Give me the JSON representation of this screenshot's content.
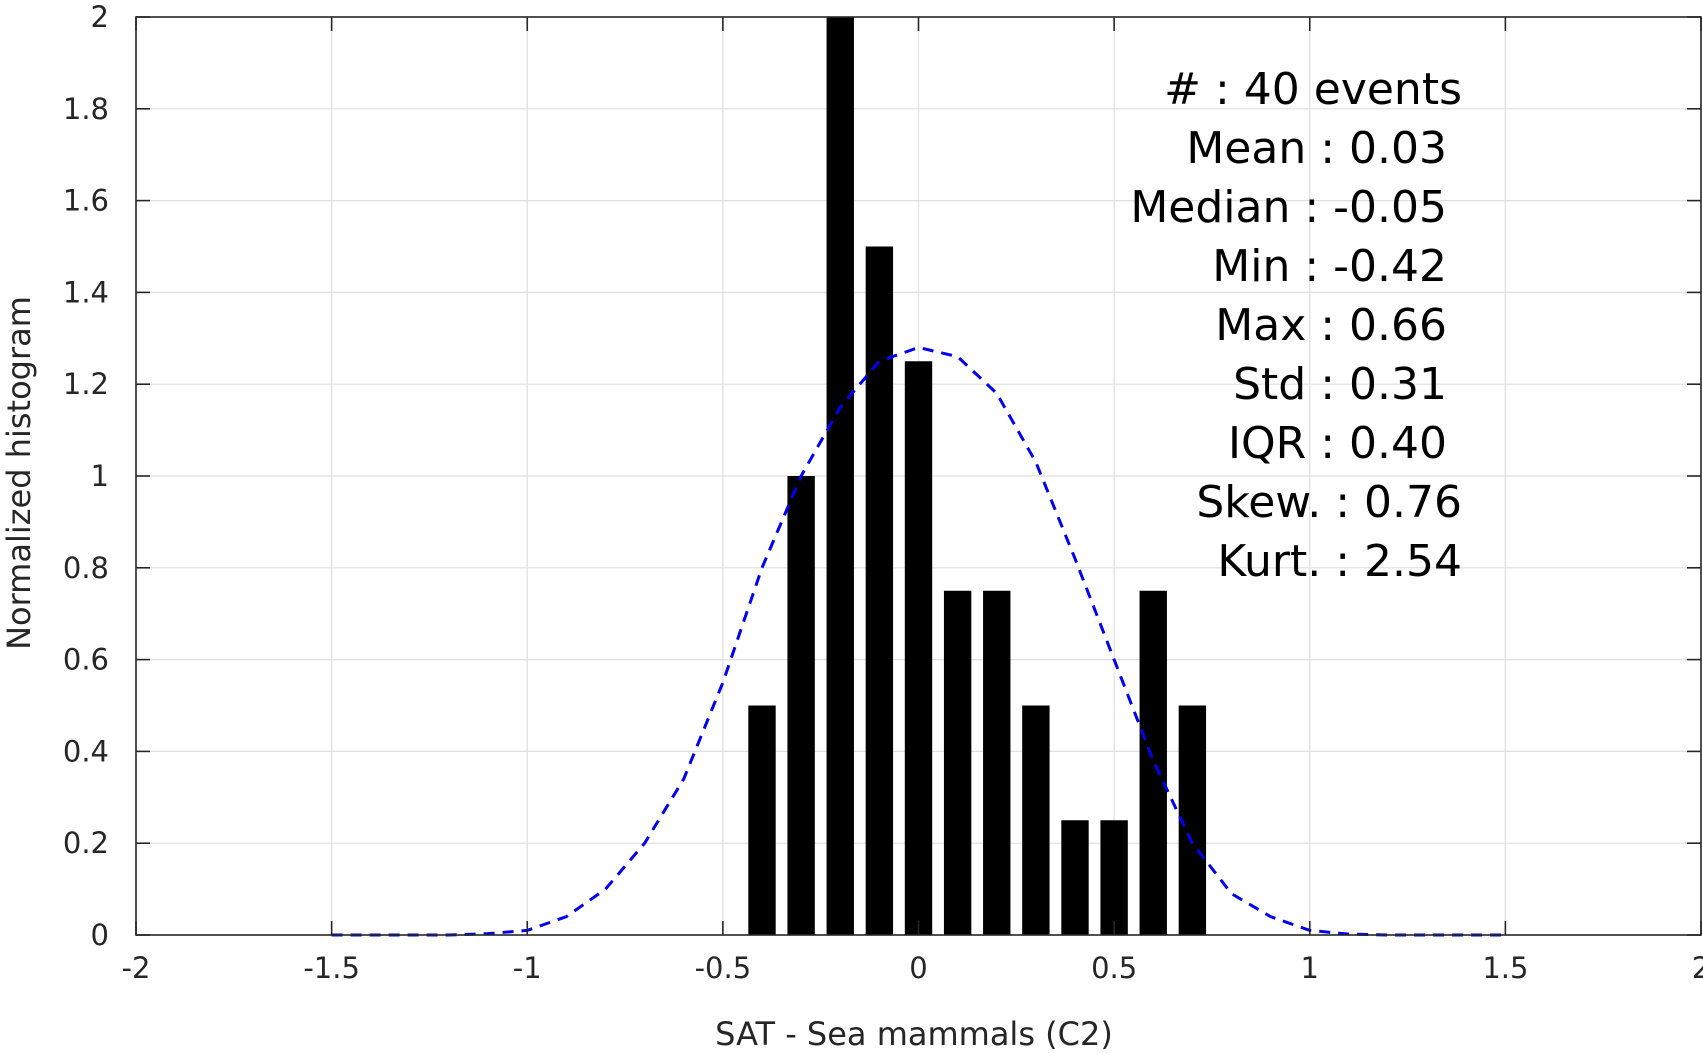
{
  "chart_data": {
    "type": "bar",
    "xlabel": "SAT - Sea mammals (C2)",
    "ylabel": "Normalized histogram",
    "xlim": [
      -2,
      2
    ],
    "ylim": [
      0,
      2
    ],
    "xticks": [
      -2,
      -1.5,
      -1,
      -0.5,
      0,
      0.5,
      1,
      1.5,
      2
    ],
    "xtick_labels": [
      "-2",
      "-1.5",
      "-1",
      "-0.5",
      "0",
      "0.5",
      "1",
      "1.5",
      "2"
    ],
    "yticks": [
      0,
      0.2,
      0.4,
      0.6,
      0.8,
      1,
      1.2,
      1.4,
      1.6,
      1.8,
      2
    ],
    "ytick_labels": [
      "0",
      "0.2",
      "0.4",
      "0.6",
      "0.8",
      "1",
      "1.2",
      "1.4",
      "1.6",
      "1.8",
      "2"
    ],
    "grid": true,
    "bar_color": "#000000",
    "bar_width": 0.07,
    "bars": {
      "x": [
        -0.4,
        -0.3,
        -0.2,
        -0.1,
        0.0,
        0.1,
        0.2,
        0.3,
        0.4,
        0.5,
        0.6,
        0.7
      ],
      "values": [
        0.5,
        1.0,
        2.0,
        1.5,
        1.25,
        0.75,
        0.75,
        0.5,
        0.25,
        0.25,
        0.75,
        0.5
      ]
    },
    "fit_curve": {
      "style": "dashed",
      "color": "#0000ee",
      "x": [
        -1.5,
        -1.4,
        -1.3,
        -1.2,
        -1.1,
        -1.0,
        -0.9,
        -0.8,
        -0.7,
        -0.6,
        -0.5,
        -0.4,
        -0.3,
        -0.2,
        -0.1,
        0.0,
        0.1,
        0.2,
        0.3,
        0.4,
        0.5,
        0.6,
        0.7,
        0.8,
        0.9,
        1.0,
        1.1,
        1.2,
        1.3,
        1.4,
        1.5
      ],
      "y": [
        0.0,
        0.0,
        0.0,
        0.0,
        0.003,
        0.01,
        0.04,
        0.1,
        0.2,
        0.34,
        0.55,
        0.8,
        1.0,
        1.15,
        1.25,
        1.28,
        1.26,
        1.18,
        1.03,
        0.82,
        0.6,
        0.38,
        0.2,
        0.09,
        0.04,
        0.01,
        0.002,
        0.0,
        0.0,
        0.0,
        0.0
      ]
    },
    "stats": [
      "#  : 40 events",
      "Mean : 0.03",
      "Median : -0.05",
      "Min : -0.42",
      "Max : 0.66",
      "Std : 0.31",
      "IQR : 0.40",
      "Skew. : 0.76",
      "Kurt. : 2.54"
    ]
  }
}
